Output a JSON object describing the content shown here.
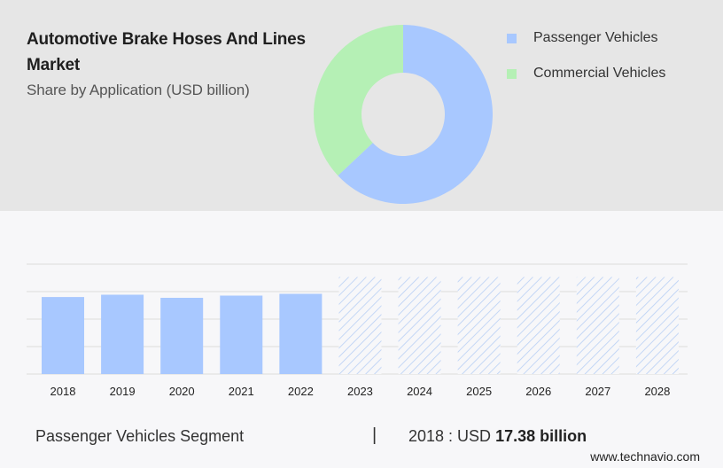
{
  "header": {
    "title": "Automotive Brake Hoses And Lines Market",
    "subtitle": "Share by Application (USD billion)"
  },
  "colors": {
    "passenger": "#a8c8ff",
    "commercial": "#b5f0b5",
    "hatch": "#b8cff5",
    "grid": "#dcdcdc"
  },
  "chart_data": [
    {
      "type": "pie",
      "variant": "donut",
      "categories": [
        "Passenger Vehicles",
        "Commercial Vehicles"
      ],
      "values": [
        63,
        37
      ],
      "legend": [
        "Passenger Vehicles",
        "Commercial Vehicles"
      ],
      "legend_position": "right"
    },
    {
      "type": "bar",
      "categories": [
        "2018",
        "2019",
        "2020",
        "2021",
        "2022",
        "2023",
        "2024",
        "2025",
        "2026",
        "2027",
        "2028"
      ],
      "values": [
        17.38,
        17.9,
        17.2,
        17.7,
        18.1,
        21.9,
        21.9,
        21.9,
        21.9,
        21.9,
        21.9
      ],
      "forecast_from": "2023",
      "ylim": [
        0,
        25
      ],
      "grid": true
    }
  ],
  "footer": {
    "segment_label": "Passenger Vehicles Segment",
    "divider": "|",
    "value_prefix": "2018 : USD ",
    "value_bold": "17.38 billion",
    "brand": "www.technavio.com"
  }
}
